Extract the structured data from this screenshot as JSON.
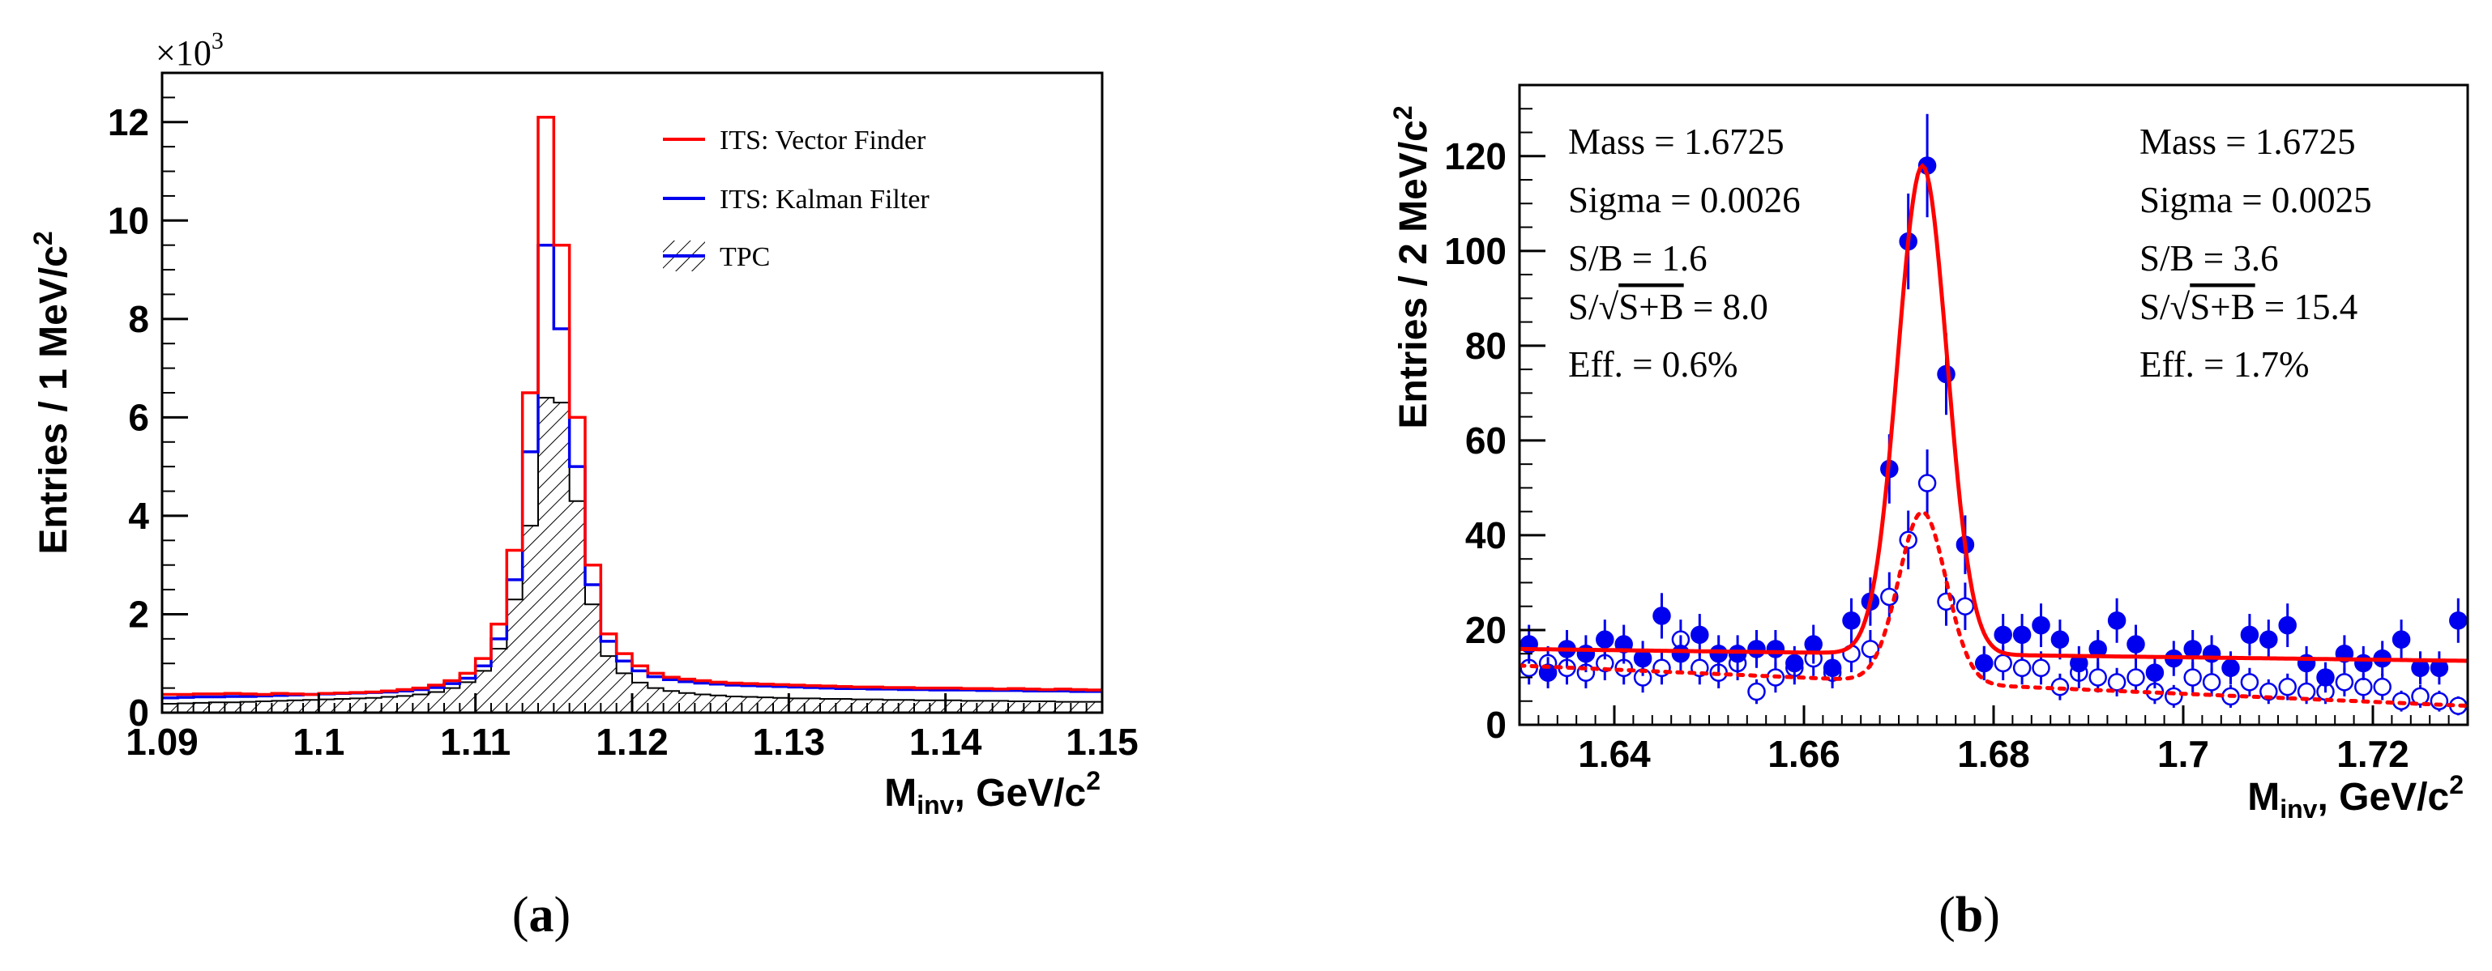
{
  "panels": {
    "a": {
      "caption_open": "(",
      "caption_letter": "a",
      "caption_close": ")",
      "multiplier": "×10",
      "multiplier_exp": "3",
      "ylabel": "Entries / 1 MeV/c",
      "ylabel_sup": "2",
      "xlabel_main": "M",
      "xlabel_sub": "inv",
      "xlabel_rest": ", GeV/c",
      "xlabel_sup": "2",
      "legend": [
        "ITS: Vector Finder",
        "ITS: Kalman Filter",
        "TPC"
      ]
    },
    "b": {
      "caption_open": "(",
      "caption_letter": "b",
      "caption_close": ")",
      "ylabel": "Entries / 2 MeV/c",
      "ylabel_sup": "2",
      "xlabel_main": "M",
      "xlabel_sub": "inv",
      "xlabel_rest": ", GeV/c",
      "xlabel_sup": "2",
      "stats_left": {
        "mass": "Mass = 1.6725",
        "sigma": "Sigma = 0.0026",
        "sb": "S/B = 1.6",
        "sig_prefix": "S/",
        "sig_under": "S+B",
        "sig_value": " = 8.0",
        "eff": "Eff. = 0.6%"
      },
      "stats_right": {
        "mass": "Mass = 1.6725",
        "sigma": "Sigma = 0.0025",
        "sb": "S/B = 3.6",
        "sig_prefix": "S/",
        "sig_under": "S+B",
        "sig_value": " = 15.4",
        "eff": "Eff. = 1.7%"
      }
    }
  },
  "colors": {
    "red": "#ff0000",
    "blue": "#0000ee",
    "black": "#000000"
  },
  "chart_data": [
    {
      "type": "histogram",
      "panel": "a",
      "title": "",
      "xlabel": "M_inv, GeV/c^2",
      "ylabel": "Entries / 1 MeV/c^2",
      "y_multiplier": 1000,
      "xlim": [
        1.09,
        1.15
      ],
      "ylim": [
        0,
        13000
      ],
      "bin_width": 0.001,
      "xticks": [
        1.09,
        1.1,
        1.11,
        1.12,
        1.13,
        1.14,
        1.15
      ],
      "xtick_labels": [
        "1.09",
        "1.1",
        "1.11",
        "1.12",
        "1.13",
        "1.14",
        "1.15"
      ],
      "yticks": [
        0,
        2000,
        4000,
        6000,
        8000,
        10000,
        12000
      ],
      "ytick_labels": [
        "0",
        "2",
        "4",
        "6",
        "8",
        "10",
        "12"
      ],
      "legend_position": "top-right",
      "series": [
        {
          "name": "ITS: Vector Finder",
          "color": "#ff0000",
          "style": "step",
          "values": [
            370,
            370,
            380,
            380,
            390,
            380,
            370,
            390,
            380,
            370,
            390,
            400,
            410,
            420,
            440,
            470,
            500,
            560,
            650,
            800,
            1100,
            1800,
            3300,
            6500,
            12100,
            9500,
            6000,
            3000,
            1600,
            1200,
            950,
            800,
            720,
            680,
            650,
            620,
            600,
            590,
            580,
            570,
            560,
            550,
            540,
            530,
            520,
            520,
            510,
            510,
            500,
            500,
            500,
            490,
            490,
            480,
            490,
            480,
            470,
            480,
            470,
            460
          ]
        },
        {
          "name": "ITS: Kalman Filter",
          "color": "#0000ee",
          "style": "step",
          "values": [
            300,
            310,
            320,
            320,
            330,
            330,
            340,
            350,
            360,
            370,
            380,
            390,
            400,
            410,
            420,
            440,
            470,
            510,
            590,
            700,
            950,
            1500,
            2700,
            5300,
            9500,
            7800,
            5000,
            2600,
            1450,
            1050,
            850,
            730,
            670,
            630,
            600,
            580,
            560,
            550,
            540,
            530,
            520,
            510,
            500,
            490,
            490,
            480,
            480,
            470,
            470,
            460,
            460,
            460,
            450,
            450,
            450,
            440,
            440,
            440,
            430,
            430
          ]
        },
        {
          "name": "TPC",
          "color": "#000000",
          "style": "hatched-fill",
          "values": [
            180,
            190,
            200,
            210,
            210,
            220,
            230,
            240,
            250,
            260,
            270,
            280,
            290,
            300,
            320,
            340,
            370,
            420,
            500,
            620,
            850,
            1300,
            2300,
            3800,
            6400,
            6300,
            4300,
            2200,
            1150,
            800,
            610,
            500,
            440,
            400,
            370,
            350,
            330,
            320,
            310,
            300,
            290,
            290,
            280,
            280,
            270,
            270,
            260,
            260,
            250,
            250,
            250,
            240,
            240,
            240,
            230,
            230,
            230,
            220,
            220,
            220
          ]
        }
      ]
    },
    {
      "type": "scatter+line",
      "panel": "b",
      "title": "",
      "xlabel": "M_inv, GeV/c^2",
      "ylabel": "Entries / 2 MeV/c^2",
      "xlim": [
        1.63,
        1.73
      ],
      "ylim": [
        0,
        135
      ],
      "xticks": [
        1.64,
        1.66,
        1.68,
        1.7,
        1.72
      ],
      "xtick_labels": [
        "1.64",
        "1.66",
        "1.68",
        "1.7",
        "1.72"
      ],
      "yticks": [
        0,
        20,
        40,
        60,
        80,
        100,
        120
      ],
      "ytick_labels": [
        "0",
        "20",
        "40",
        "60",
        "80",
        "100",
        "120"
      ],
      "series": [
        {
          "name": "filled points",
          "color": "#0000ee",
          "marker": "filled-circle",
          "x": [
            1.631,
            1.633,
            1.635,
            1.637,
            1.639,
            1.641,
            1.643,
            1.645,
            1.647,
            1.649,
            1.651,
            1.653,
            1.655,
            1.657,
            1.659,
            1.661,
            1.663,
            1.665,
            1.667,
            1.669,
            1.671,
            1.673,
            1.675,
            1.677,
            1.679,
            1.681,
            1.683,
            1.685,
            1.687,
            1.689,
            1.691,
            1.693,
            1.695,
            1.697,
            1.699,
            1.701,
            1.703,
            1.705,
            1.707,
            1.709,
            1.711,
            1.713,
            1.715,
            1.717,
            1.719,
            1.721,
            1.723,
            1.725,
            1.727,
            1.729
          ],
          "y": [
            17,
            11,
            16,
            15,
            18,
            17,
            14,
            23,
            15,
            19,
            15,
            15,
            16,
            16,
            13,
            17,
            12,
            22,
            26,
            54,
            102,
            118,
            74,
            38,
            13,
            19,
            19,
            21,
            18,
            13,
            16,
            22,
            17,
            11,
            14,
            16,
            15,
            12,
            19,
            18,
            21,
            13,
            10,
            15,
            13,
            14,
            18,
            12,
            12,
            22
          ],
          "yerr": [
            4.1,
            3.3,
            4.0,
            3.9,
            4.2,
            4.1,
            3.7,
            4.8,
            3.9,
            4.4,
            3.9,
            3.9,
            4.0,
            4.0,
            3.6,
            4.1,
            3.5,
            4.7,
            5.1,
            7.3,
            10.1,
            10.9,
            8.6,
            6.2,
            3.6,
            4.4,
            4.4,
            4.6,
            4.2,
            3.6,
            4.0,
            4.7,
            4.1,
            3.3,
            3.7,
            4.0,
            3.9,
            3.5,
            4.4,
            4.2,
            4.6,
            3.6,
            3.2,
            3.9,
            3.6,
            3.7,
            4.2,
            3.5,
            3.5,
            4.7
          ]
        },
        {
          "name": "open points",
          "color": "#0000ee",
          "marker": "open-circle",
          "x": [
            1.631,
            1.633,
            1.635,
            1.637,
            1.639,
            1.641,
            1.643,
            1.645,
            1.647,
            1.649,
            1.651,
            1.653,
            1.655,
            1.657,
            1.659,
            1.661,
            1.663,
            1.665,
            1.667,
            1.669,
            1.671,
            1.673,
            1.675,
            1.677,
            1.679,
            1.681,
            1.683,
            1.685,
            1.687,
            1.689,
            1.691,
            1.693,
            1.695,
            1.697,
            1.699,
            1.701,
            1.703,
            1.705,
            1.707,
            1.709,
            1.711,
            1.713,
            1.715,
            1.717,
            1.719,
            1.721,
            1.723,
            1.725,
            1.727,
            1.729
          ],
          "y": [
            12,
            13,
            12,
            11,
            13,
            12,
            10,
            12,
            18,
            12,
            11,
            13,
            7,
            10,
            12,
            14,
            11,
            15,
            16,
            27,
            39,
            51,
            26,
            25,
            13,
            13,
            12,
            12,
            8,
            11,
            10,
            9,
            10,
            7,
            6,
            10,
            9,
            6,
            9,
            7,
            8,
            7,
            7,
            9,
            8,
            8,
            5,
            6,
            5,
            4
          ],
          "yerr": [
            3.5,
            3.6,
            3.5,
            3.3,
            3.6,
            3.5,
            3.2,
            3.5,
            4.2,
            3.5,
            3.3,
            3.6,
            2.6,
            3.2,
            3.5,
            3.7,
            3.3,
            3.9,
            4.0,
            5.2,
            6.2,
            7.1,
            5.1,
            5.0,
            3.6,
            3.6,
            3.5,
            3.5,
            2.8,
            3.3,
            3.2,
            3.0,
            3.2,
            2.6,
            2.4,
            3.2,
            3.0,
            2.4,
            3.0,
            2.6,
            2.8,
            2.6,
            2.6,
            3.0,
            2.8,
            2.8,
            2.2,
            2.4,
            2.2,
            2.0
          ]
        },
        {
          "name": "fit (filled)",
          "color": "#ff0000",
          "line": "solid",
          "model": "gaussian+linear",
          "mean": 1.6725,
          "sigma": 0.0026,
          "amplitude": 103,
          "background_start": 16,
          "background_end": 13.5
        },
        {
          "name": "fit (open)",
          "color": "#ff0000",
          "line": "dotted",
          "model": "gaussian+linear",
          "mean": 1.6725,
          "sigma": 0.0025,
          "amplitude": 36,
          "background_start": 12.5,
          "background_end": 4
        }
      ]
    }
  ]
}
